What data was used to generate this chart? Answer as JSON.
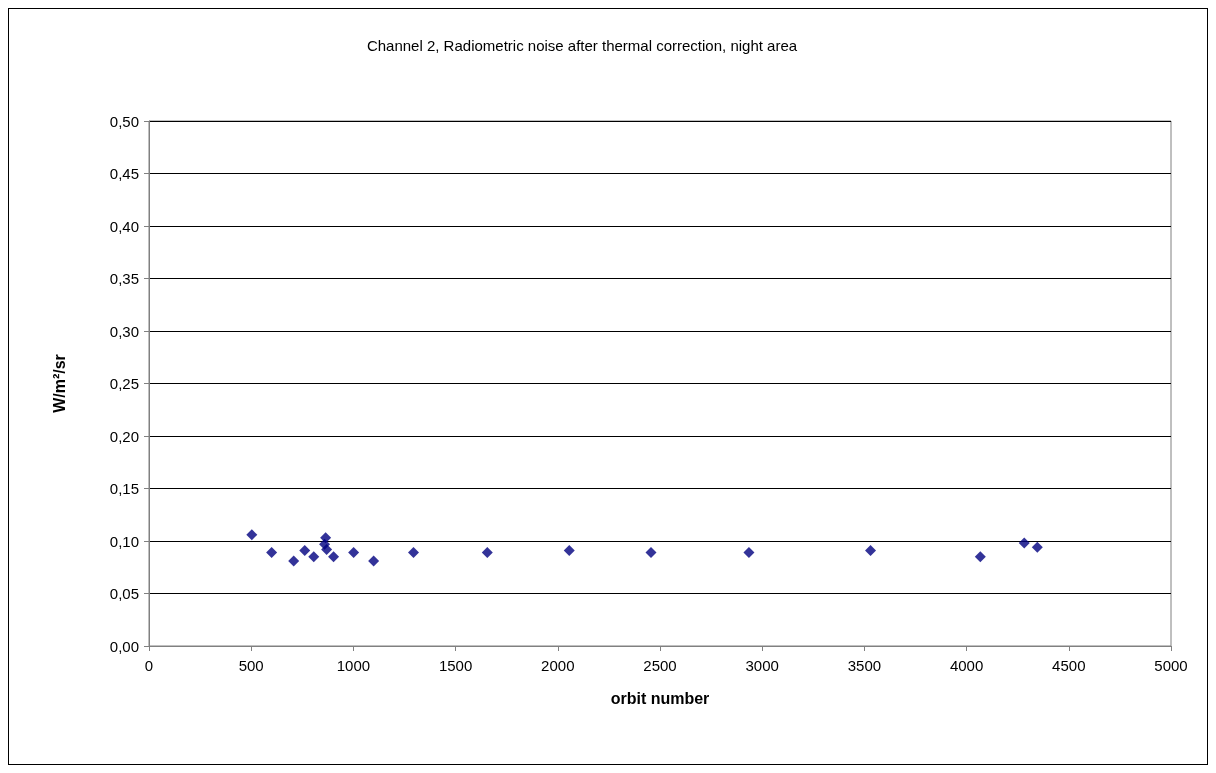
{
  "chart_data": {
    "type": "scatter",
    "title": "Channel 2, Radiometric noise after thermal correction, night area",
    "xlabel": "orbit number",
    "ylabel": "W/m²/sr",
    "x": [
      503,
      600,
      708,
      762,
      806,
      859,
      864,
      869,
      903,
      1001,
      1099,
      1294,
      1655,
      2056,
      2456,
      2935,
      3530,
      4067,
      4282,
      4346
    ],
    "series": [
      {
        "color": "#000080",
        "values": [
          0.106,
          0.089,
          0.081,
          0.091,
          0.085,
          0.097,
          0.103,
          0.092,
          0.085,
          0.089,
          0.081,
          0.089,
          0.089,
          0.091,
          0.089,
          0.089,
          0.091,
          0.085,
          0.098,
          0.094
        ]
      }
    ],
    "xlim": [
      0,
      5000
    ],
    "xticks": [
      0,
      500,
      1000,
      1500,
      2000,
      2500,
      3000,
      3500,
      4000,
      4500,
      5000
    ],
    "ylim": [
      0,
      0.5
    ],
    "yticks": [
      {
        "value": 0,
        "label": "0,00"
      },
      {
        "value": 0.05,
        "label": "0,05"
      },
      {
        "value": 0.1,
        "label": "0,10"
      },
      {
        "value": 0.15,
        "label": "0,15"
      },
      {
        "value": 0.2,
        "label": "0,20"
      },
      {
        "value": 0.25,
        "label": "0,25"
      },
      {
        "value": 0.3,
        "label": "0,30"
      },
      {
        "value": 0.35,
        "label": "0,35"
      },
      {
        "value": 0.4,
        "label": "0,40"
      },
      {
        "value": 0.45,
        "label": "0,45"
      },
      {
        "value": 0.5,
        "label": "0,50"
      }
    ],
    "grid": "y",
    "marker": "diamond"
  }
}
